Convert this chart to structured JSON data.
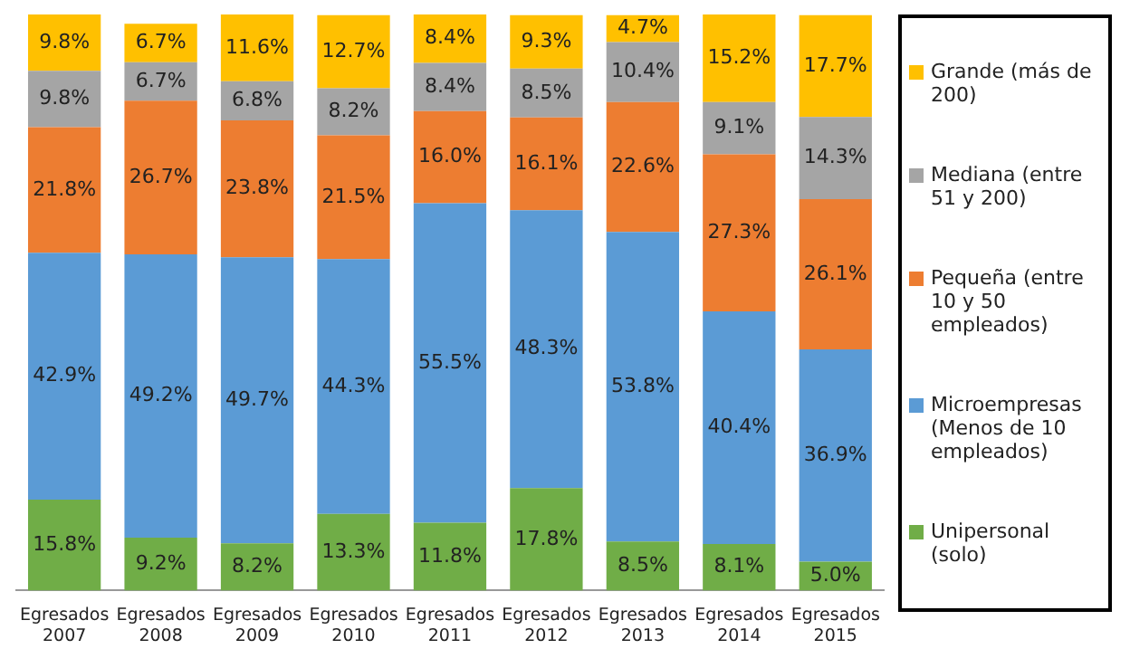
{
  "chart_data": {
    "type": "bar",
    "stacked": true,
    "legend": "right",
    "categories": [
      "Egresados 2007",
      "Egresados 2008",
      "Egresados 2009",
      "Egresados 2010",
      "Egresados 2011",
      "Egresados 2012",
      "Egresados 2013",
      "Egresados 2014",
      "Egresados 2015"
    ],
    "series": [
      {
        "name": "Unipersonal (solo)",
        "color": "#70ad47",
        "values": [
          15.8,
          9.2,
          8.2,
          13.3,
          11.8,
          17.8,
          8.5,
          8.1,
          5.0
        ],
        "value_labels": [
          "15.8%",
          "9.2%",
          "8.2%",
          "13.3%",
          "11.8%",
          "17.8%",
          "8.5%",
          "8.1%",
          "5.0%"
        ]
      },
      {
        "name": "Microempresas (Menos de 10 empleados)",
        "color": "#5b9bd5",
        "values": [
          42.9,
          49.2,
          49.7,
          44.3,
          55.5,
          48.3,
          53.8,
          40.4,
          36.9
        ],
        "value_labels": [
          "42.9%",
          "49.2%",
          "49.7%",
          "44.3%",
          "55.5%",
          "48.3%",
          "53.8%",
          "40.4%",
          "36.9%"
        ]
      },
      {
        "name": "Pequeña (entre 10 y 50 empleados)",
        "color": "#ed7d31",
        "values": [
          21.8,
          26.7,
          23.8,
          21.5,
          16.0,
          16.1,
          22.6,
          27.3,
          26.1
        ],
        "value_labels": [
          "21.8%",
          "26.7%",
          "23.8%",
          "21.5%",
          "16.0%",
          "16.1%",
          "22.6%",
          "27.3%",
          "26.1%"
        ]
      },
      {
        "name": "Mediana (entre 51 y 200)",
        "color": "#a5a5a5",
        "values": [
          9.8,
          6.7,
          6.8,
          8.2,
          8.4,
          8.5,
          10.4,
          9.1,
          14.3
        ],
        "value_labels": [
          "9.8%",
          "6.7%",
          "6.8%",
          "8.2%",
          "8.4%",
          "8.5%",
          "10.4%",
          "9.1%",
          "14.3%"
        ]
      },
      {
        "name": "Grande (más de 200)",
        "color": "#ffc000",
        "values": [
          9.8,
          6.7,
          11.6,
          12.7,
          8.4,
          9.3,
          4.7,
          15.2,
          17.7
        ],
        "value_labels": [
          "9.8%",
          "6.7%",
          "11.6%",
          "12.7%",
          "8.4%",
          "9.3%",
          "4.7%",
          "15.2%",
          "17.7%"
        ]
      }
    ]
  }
}
